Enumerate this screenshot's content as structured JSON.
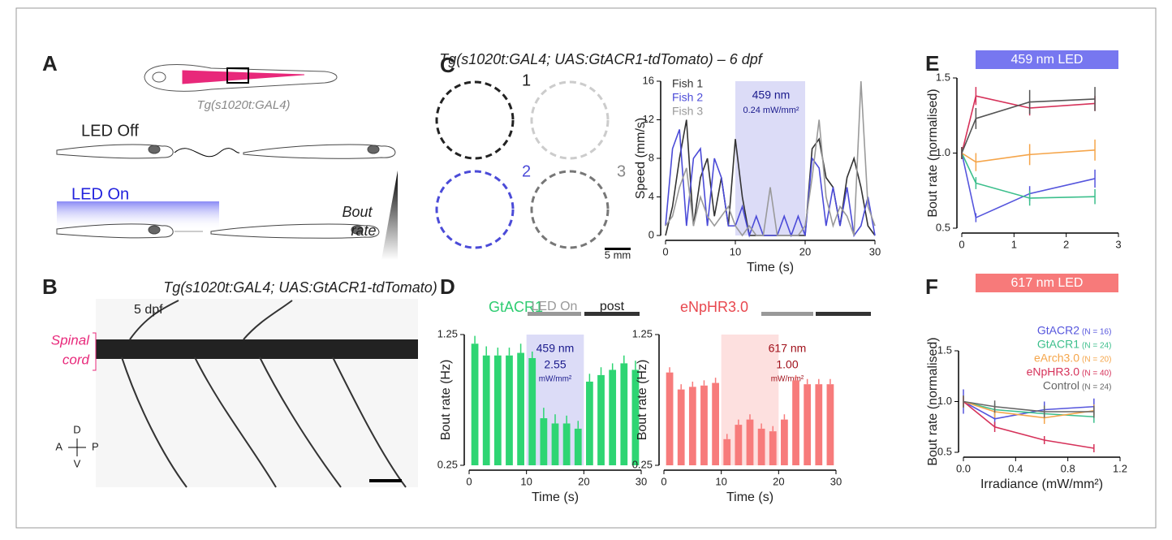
{
  "panels": {
    "A": {
      "letter": "A",
      "genotype": "Tg(s1020t:GAL4)",
      "led_off": "LED Off",
      "led_on": "LED On",
      "bout_rate": [
        "Bout",
        "rate"
      ]
    },
    "B": {
      "letter": "B",
      "genotype": "Tg(s1020t:GAL4; UAS:GtACR1-tdTomato)",
      "age": "5 dpf",
      "spinal_cord": [
        "Spinal",
        "cord"
      ],
      "axes": {
        "d": "D",
        "a": "A",
        "p": "P",
        "v": "V"
      }
    },
    "C": {
      "letter": "C",
      "title": "Tg(s1020t:GAL4; UAS:GtACR1-tdTomato) – 6 dpf",
      "fish_numbers": [
        "1",
        "2",
        "3"
      ],
      "scale_bar": "5 mm"
    },
    "D": {
      "letter": "D",
      "led_on": "LED On",
      "post": "post"
    },
    "E": {
      "letter": "E"
    },
    "F": {
      "letter": "F"
    }
  },
  "chart_data": [
    {
      "type": "line",
      "xlabel": "Time (s)",
      "ylabel": "Speed (mm/s)",
      "legend": "upper left",
      "x": [
        0,
        1,
        2,
        3,
        4,
        5,
        6,
        7,
        8,
        9,
        10,
        11,
        12,
        13,
        14,
        15,
        16,
        17,
        18,
        19,
        20,
        21,
        22,
        23,
        24,
        25,
        26,
        27,
        28,
        29,
        30
      ],
      "series": [
        {
          "name": "Fish 1",
          "color": "#333333",
          "values": [
            0,
            3,
            8,
            12,
            1,
            6,
            8,
            2,
            6,
            1,
            10,
            4,
            0,
            0,
            0,
            0,
            0,
            0,
            0,
            0,
            0,
            9,
            10,
            6,
            5,
            1,
            6,
            8,
            5,
            1,
            0
          ]
        },
        {
          "name": "Fish 2",
          "color": "#4b4bd8",
          "values": [
            1,
            9,
            11,
            1,
            8,
            9,
            1,
            8,
            6,
            1,
            1,
            3,
            0,
            2,
            0,
            0,
            0,
            2,
            0,
            2,
            0,
            8,
            7,
            1,
            5,
            1,
            5,
            0,
            1,
            4,
            0
          ]
        },
        {
          "name": "Fish 3",
          "color": "#9a9a9a",
          "values": [
            1,
            2,
            5,
            7,
            1,
            4,
            2,
            1,
            2,
            3,
            1,
            0,
            1,
            0,
            0,
            5,
            0,
            0,
            0,
            0,
            1,
            6,
            12,
            4,
            1,
            3,
            2,
            0,
            16,
            3,
            1
          ]
        }
      ],
      "shade": [
        10,
        20
      ],
      "shade_color": "#dcdcf7",
      "annotations": [
        "459 nm",
        "0.24 mW/mm²"
      ],
      "xlim": [
        0,
        30
      ],
      "xticks": [
        0,
        10,
        20,
        30
      ],
      "ylim": [
        0,
        16
      ],
      "yticks": [
        0,
        4,
        8,
        12,
        16
      ]
    },
    {
      "type": "bar",
      "title": "GtACR1",
      "title_color": "#2ecc71",
      "xlabel": "Time (s)",
      "ylabel": "Bout rate (Hz)",
      "color": "#2ed573",
      "x": [
        1,
        3,
        5,
        7,
        9,
        11,
        13,
        15,
        17,
        19,
        21,
        23,
        25,
        27,
        29
      ],
      "values": [
        1.18,
        1.09,
        1.09,
        1.09,
        1.11,
        1.07,
        0.61,
        0.57,
        0.57,
        0.53,
        0.89,
        0.94,
        0.98,
        1.03,
        0.98
      ],
      "errors": [
        0.06,
        0.07,
        0.06,
        0.06,
        0.07,
        0.05,
        0.08,
        0.07,
        0.06,
        0.06,
        0.06,
        0.06,
        0.05,
        0.06,
        0.07
      ],
      "shade": [
        10,
        20
      ],
      "shade_color": "#dcdcf7",
      "annotations": [
        "459 nm",
        "2.55",
        "mW/mm²"
      ],
      "xlim": [
        0,
        30
      ],
      "xticks": [
        0,
        10,
        20,
        30
      ],
      "ylim": [
        0.25,
        1.25
      ],
      "yticks": [
        0.25,
        1.25
      ]
    },
    {
      "type": "bar",
      "title": "eNpHR3.0",
      "title_color": "#e8484f",
      "xlabel": "Time (s)",
      "ylabel": "Bout rate (Hz)",
      "color": "#f77b7b",
      "x": [
        1,
        3,
        5,
        7,
        9,
        11,
        13,
        15,
        17,
        19,
        21,
        23,
        25,
        27,
        29
      ],
      "values": [
        0.96,
        0.83,
        0.85,
        0.86,
        0.88,
        0.45,
        0.56,
        0.6,
        0.53,
        0.51,
        0.6,
        0.9,
        0.87,
        0.87,
        0.87
      ],
      "errors": [
        0.04,
        0.04,
        0.04,
        0.04,
        0.04,
        0.04,
        0.04,
        0.04,
        0.04,
        0.04,
        0.04,
        0.04,
        0.04,
        0.04,
        0.04
      ],
      "shade": [
        10,
        20
      ],
      "shade_color": "#fde0df",
      "annotations": [
        "617 nm",
        "1.00",
        "mW/mm²"
      ],
      "xlim": [
        0,
        30
      ],
      "xticks": [
        0,
        10,
        20,
        30
      ],
      "ylim": [
        0.25,
        1.25
      ],
      "yticks": [
        0.25,
        1.25
      ]
    },
    {
      "type": "line",
      "title": "459 nm LED",
      "title_color": "#7777f0",
      "ylabel": "Bout rate (normalised)",
      "x": [
        0,
        0.27,
        1.3,
        2.55
      ],
      "series": [
        {
          "color": "#5555dd",
          "values": [
            1.0,
            0.57,
            0.73,
            0.83
          ],
          "errors": [
            0.04,
            0.03,
            0.05,
            0.06
          ]
        },
        {
          "color": "#3cbf8c",
          "values": [
            1.0,
            0.8,
            0.7,
            0.71
          ],
          "errors": [
            0.04,
            0.04,
            0.05,
            0.05
          ]
        },
        {
          "color": "#f5a54a",
          "values": [
            1.0,
            0.94,
            0.99,
            1.02
          ],
          "errors": [
            0.04,
            0.06,
            0.07,
            0.07
          ]
        },
        {
          "color": "#d6325a",
          "values": [
            1.0,
            1.38,
            1.3,
            1.33
          ],
          "errors": [
            0.04,
            0.06,
            0.05,
            0.05
          ]
        },
        {
          "color": "#555555",
          "values": [
            1.0,
            1.23,
            1.34,
            1.36
          ],
          "errors": [
            0.04,
            0.07,
            0.08,
            0.08
          ]
        }
      ],
      "xlim": [
        0,
        3
      ],
      "xticks": [
        0,
        1,
        2,
        3
      ],
      "ylim": [
        0.5,
        1.5
      ],
      "yticks": [
        0.5,
        {
          "value": 1,
          "label": "1.0"
        },
        1.5
      ]
    },
    {
      "type": "line",
      "title": "617 nm LED",
      "title_color": "#f77a7a",
      "xlabel": "Irradiance (mW/mm²)",
      "ylabel": "Bout rate (normalised)",
      "legend": "upper right",
      "x": [
        0,
        0.24,
        0.62,
        1.0
      ],
      "series": [
        {
          "name": "GtACR2",
          "n_label": "(N = 16)",
          "color": "#5555dd",
          "values": [
            1.0,
            0.83,
            0.92,
            0.95
          ],
          "errors": [
            0.12,
            0.08,
            0.08,
            0.08
          ]
        },
        {
          "name": "GtACR1",
          "n_label": "(N = 24)",
          "color": "#3cbf8c",
          "values": [
            1.0,
            0.92,
            0.88,
            0.85
          ],
          "errors": [
            0.06,
            0.06,
            0.06,
            0.06
          ]
        },
        {
          "name": "eArch3.0",
          "n_label": "(N = 20)",
          "color": "#f5a54a",
          "values": [
            1.0,
            0.9,
            0.84,
            0.91
          ],
          "errors": [
            0.06,
            0.06,
            0.06,
            0.06
          ]
        },
        {
          "name": "eNpHR3.0",
          "n_label": "(N = 40)",
          "color": "#d6325a",
          "values": [
            1.0,
            0.75,
            0.62,
            0.54
          ],
          "errors": [
            0.05,
            0.05,
            0.04,
            0.04
          ]
        },
        {
          "name": "Control",
          "n_label": "(N = 24)",
          "color": "#666666",
          "values": [
            1.0,
            0.95,
            0.9,
            0.9
          ],
          "errors": [
            0.06,
            0.06,
            0.06,
            0.06
          ]
        }
      ],
      "xlim": [
        0,
        1.2
      ],
      "xticks": [
        {
          "value": 0,
          "label": "0.0"
        },
        0.4,
        0.8,
        1.2
      ],
      "ylim": [
        0.5,
        1.5
      ],
      "yticks": [
        0.5,
        {
          "value": 1,
          "label": "1.0"
        },
        1.5
      ]
    }
  ]
}
